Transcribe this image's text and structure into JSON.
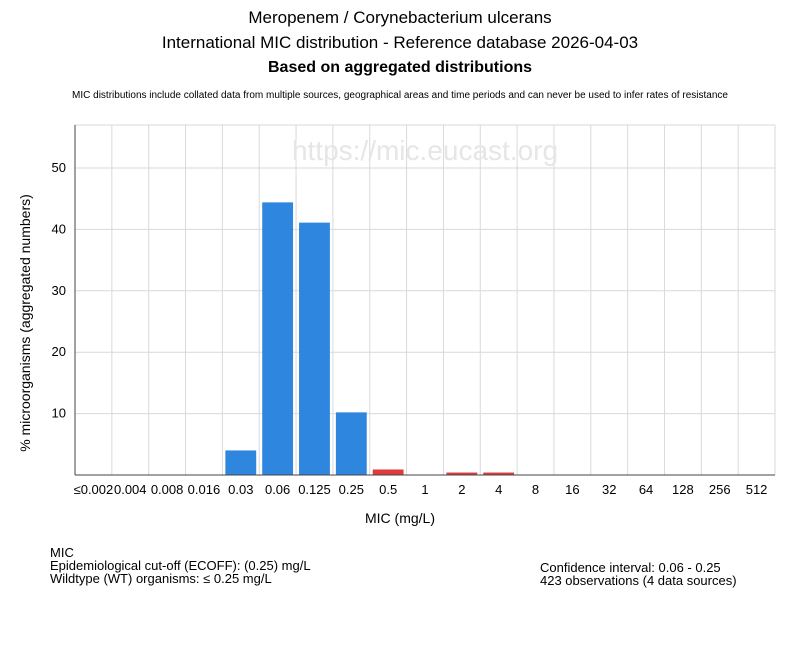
{
  "header": {
    "title": "Meropenem / Corynebacterium ulcerans",
    "subtitle": "International MIC distribution - Reference database 2026-04-03",
    "subtitle2": "Based on aggregated distributions",
    "note": "MIC distributions include collated data from multiple sources, geographical areas and time periods and can never be used to infer rates of resistance"
  },
  "watermark": "https://mic.eucast.org",
  "footer": {
    "heading": "MIC",
    "ecoff": "Epidemiological cut-off (ECOFF): (0.25) mg/L",
    "wildtype": "Wildtype (WT) organisms: ≤ 0.25 mg/L",
    "confidence": "Confidence interval: 0.06 - 0.25",
    "observations": "423 observations (4 data sources)"
  },
  "colors": {
    "wildtype": "#2e86de",
    "non_wildtype": "#e03b3b",
    "grid": "#d9d9d9"
  },
  "chart_data": {
    "type": "bar",
    "title": "Meropenem / Corynebacterium ulcerans",
    "xlabel": "MIC (mg/L)",
    "ylabel": "% microorganisms (aggregated numbers)",
    "ylim": [
      0,
      57
    ],
    "yticks": [
      10,
      20,
      30,
      40,
      50
    ],
    "grid": true,
    "categories": [
      "≤0.002",
      "0.004",
      "0.008",
      "0.016",
      "0.03",
      "0.06",
      "0.125",
      "0.25",
      "0.5",
      "1",
      "2",
      "4",
      "8",
      "16",
      "32",
      "64",
      "128",
      "256",
      "512"
    ],
    "values": [
      0,
      0,
      0,
      0,
      4.0,
      44.4,
      41.1,
      10.2,
      0.9,
      0,
      0.4,
      0.4,
      0,
      0,
      0,
      0,
      0,
      0,
      0
    ],
    "bar_class": [
      "wt",
      "wt",
      "wt",
      "wt",
      "wt",
      "wt",
      "wt",
      "wt",
      "nwt",
      "nwt",
      "nwt",
      "nwt",
      "nwt",
      "nwt",
      "nwt",
      "nwt",
      "nwt",
      "nwt",
      "nwt"
    ]
  }
}
